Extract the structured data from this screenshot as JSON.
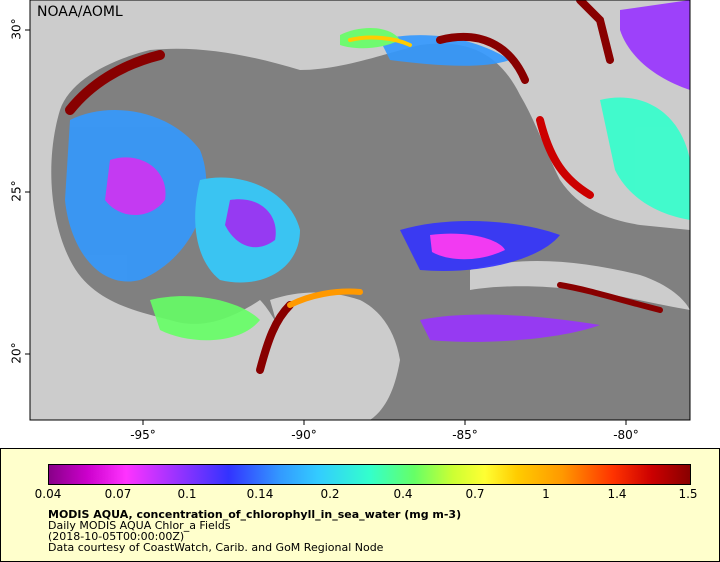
{
  "map": {
    "agency_label": "NOAA/AOML",
    "lon_ticks": [
      "-95°",
      "-90°",
      "-85°",
      "-80°"
    ],
    "lat_ticks": [
      "30°",
      "25°",
      "20°"
    ]
  },
  "legend": {
    "colorbar_labels": [
      "0.04",
      "0.07",
      "0.1",
      "0.14",
      "0.2",
      "0.4",
      "0.7",
      "1",
      "1.4",
      "1.5"
    ],
    "title": "MODIS AQUA, concentration_of_chlorophyll_in_sea_water (mg m-3)",
    "subtitle": "Daily MODIS AQUA Chlor_a Fields",
    "date": "(2018-10-05T00:00:00Z)",
    "credit": "Data courtesy of CoastWatch, Carib. and GoM Regional Node"
  },
  "colors": {
    "land": "#cccccc",
    "no_data": "#808080",
    "legend_bg": "#ffffcc"
  }
}
